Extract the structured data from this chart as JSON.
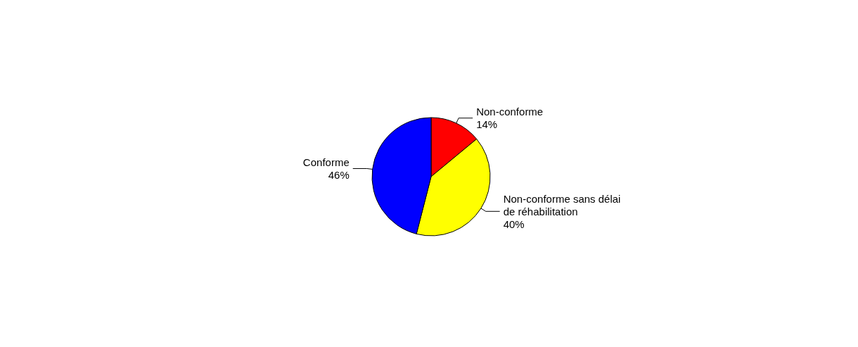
{
  "chart_data": {
    "type": "pie",
    "categories": [
      "Non-conforme",
      "Non-conforme sans délai de réhabilitation",
      "Conforme"
    ],
    "values": [
      14,
      40,
      46
    ],
    "value_labels": [
      "14%",
      "40%",
      "46%"
    ],
    "colors": [
      "#ff0000",
      "#ffff00",
      "#0000ff"
    ],
    "legend": false
  }
}
